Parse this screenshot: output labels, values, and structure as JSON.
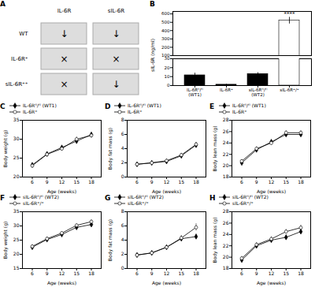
{
  "chart_data": [
    {
      "type": "schematic",
      "title": "A",
      "columns": [
        "IL-6R",
        "sIL-6R"
      ],
      "rows": [
        "WT",
        "IL-6R⁺",
        "sIL-6R⁺⁺"
      ],
      "cells": [
        [
          "↓",
          "↓"
        ],
        [
          "×",
          "×"
        ],
        [
          "×",
          "↓"
        ]
      ]
    },
    {
      "type": "bar",
      "title": "B",
      "ylabel": "sIL-6R (ng/ml)",
      "categories": [
        "IL-6Rᶠˡ/ᶠˡ\n(WT1)",
        "IL-6R⁺",
        "sIL-6Rᶠˡ/ᶠˡ\n(WT2)",
        "sIL-6R⁺/⁺"
      ],
      "values": [
        11.5,
        1.0,
        13.0,
        520.0
      ],
      "errors": [
        2.5,
        0.5,
        1.5,
        40.0
      ],
      "colors": [
        "black",
        "black",
        "black",
        "white"
      ],
      "axis_segments": [
        {
          "ylim": [
            0,
            30
          ],
          "yticks": [
            0,
            10,
            20,
            30
          ]
        },
        {
          "ylim": [
            100,
            630
          ],
          "yticks": [
            100,
            200,
            300,
            400,
            500,
            600
          ]
        }
      ],
      "annotations": [
        {
          "text": "****",
          "category": "sIL-6R⁺/⁺",
          "y": 572
        }
      ]
    },
    {
      "type": "line",
      "title": "C",
      "xlabel": "Age (weeks)",
      "ylabel": "Body weight (g)",
      "xlim": [
        4,
        20
      ],
      "xticks": [
        6,
        9,
        12,
        15,
        18
      ],
      "ylim": [
        20,
        35
      ],
      "yticks": [
        20,
        25,
        30,
        35
      ],
      "legend": "top",
      "series": [
        {
          "name": "IL-6Rᶠˡ/ᶠˡ (WT1)",
          "color": "black",
          "marker": "diamond",
          "x": [
            6,
            9,
            12,
            15,
            18
          ],
          "values": [
            23.2,
            26.1,
            27.8,
            29.5,
            31.2
          ],
          "errors": [
            0.4,
            0.5,
            0.5,
            0.6,
            0.6
          ]
        },
        {
          "name": "IL-6R⁺",
          "color": "black",
          "marker": "open_circle",
          "x": [
            6,
            9,
            12,
            15,
            18
          ],
          "values": [
            23.0,
            26.0,
            27.5,
            30.0,
            31.0
          ],
          "errors": [
            0.4,
            0.5,
            0.6,
            0.6,
            0.7
          ]
        }
      ]
    },
    {
      "type": "line",
      "title": "D",
      "xlabel": "Age (weeks)",
      "ylabel": "Body fat mass (g)",
      "xlim": [
        4,
        20
      ],
      "xticks": [
        6,
        9,
        12,
        15,
        18
      ],
      "ylim": [
        0,
        8
      ],
      "yticks": [
        0,
        2,
        4,
        6,
        8
      ],
      "legend": "top",
      "series": [
        {
          "name": "IL-6Rᶠˡ/ᶠˡ (WT1)",
          "color": "black",
          "marker": "diamond",
          "x": [
            6,
            9,
            12,
            15,
            18
          ],
          "values": [
            1.8,
            2.0,
            2.2,
            3.0,
            4.5
          ],
          "errors": [
            0.15,
            0.15,
            0.2,
            0.25,
            0.3
          ]
        },
        {
          "name": "IL-6R⁺",
          "color": "black",
          "marker": "open_circle",
          "x": [
            6,
            9,
            12,
            15,
            18
          ],
          "values": [
            1.8,
            2.0,
            2.3,
            3.1,
            4.6
          ],
          "errors": [
            0.15,
            0.15,
            0.2,
            0.25,
            0.3
          ]
        }
      ]
    },
    {
      "type": "line",
      "title": "E",
      "xlabel": "Age (weeks)",
      "ylabel": "Body lean mass (g)",
      "xlim": [
        4,
        20
      ],
      "xticks": [
        6,
        9,
        12,
        15,
        18
      ],
      "ylim": [
        18,
        28
      ],
      "yticks": [
        18,
        20,
        22,
        24,
        26,
        28
      ],
      "legend": "top",
      "series": [
        {
          "name": "IL-6Rᶠˡ/ᶠˡ (WT1)",
          "color": "black",
          "marker": "diamond",
          "x": [
            6,
            9,
            12,
            15,
            18
          ],
          "values": [
            20.5,
            22.8,
            24.2,
            25.5,
            25.5
          ],
          "errors": [
            0.3,
            0.3,
            0.35,
            0.35,
            0.4
          ]
        },
        {
          "name": "IL-6R⁺",
          "color": "black",
          "marker": "open_circle",
          "x": [
            6,
            9,
            12,
            15,
            18
          ],
          "values": [
            20.8,
            23.0,
            24.0,
            25.8,
            25.8
          ],
          "errors": [
            0.3,
            0.35,
            0.35,
            0.4,
            0.4
          ]
        }
      ]
    },
    {
      "type": "line",
      "title": "F",
      "xlabel": "Age (weeks)",
      "ylabel": "Body weight (g)",
      "xlim": [
        4,
        20
      ],
      "xticks": [
        6,
        9,
        12,
        15,
        18
      ],
      "ylim": [
        15,
        35
      ],
      "yticks": [
        15,
        20,
        25,
        30,
        35
      ],
      "legend": "top",
      "series": [
        {
          "name": "sIL-6Rᶠˡ/ᶠˡ (WT2)",
          "color": "black",
          "marker": "diamond",
          "x": [
            6,
            9,
            12,
            15,
            18
          ],
          "values": [
            22.5,
            25.2,
            27.0,
            29.5,
            30.5
          ],
          "errors": [
            0.4,
            0.5,
            0.5,
            0.6,
            0.6
          ]
        },
        {
          "name": "sIL-6R⁺/⁺",
          "color": "black",
          "marker": "open_circle",
          "x": [
            6,
            9,
            12,
            15,
            18
          ],
          "values": [
            22.8,
            25.5,
            27.5,
            30.2,
            31.5
          ],
          "errors": [
            0.4,
            0.5,
            0.5,
            0.6,
            0.7
          ]
        }
      ]
    },
    {
      "type": "line",
      "title": "G",
      "xlabel": "Age (weeks)",
      "ylabel": "Body fat mass (g)",
      "xlim": [
        4,
        20
      ],
      "xticks": [
        6,
        9,
        12,
        15,
        18
      ],
      "ylim": [
        0,
        8
      ],
      "yticks": [
        0,
        2,
        4,
        6,
        8
      ],
      "legend": "top",
      "series": [
        {
          "name": "sIL-6Rᶠˡ/ᶠˡ (WT2)",
          "color": "black",
          "marker": "diamond",
          "x": [
            6,
            9,
            12,
            15,
            18
          ],
          "values": [
            1.9,
            2.2,
            3.0,
            4.2,
            4.5
          ],
          "errors": [
            0.15,
            0.2,
            0.25,
            0.3,
            0.35
          ]
        },
        {
          "name": "sIL-6R⁺/⁺",
          "color": "black",
          "marker": "open_circle",
          "x": [
            6,
            9,
            12,
            15,
            18
          ],
          "values": [
            1.9,
            2.2,
            3.0,
            4.3,
            5.8
          ],
          "errors": [
            0.15,
            0.2,
            0.25,
            0.35,
            0.5
          ]
        }
      ]
    },
    {
      "type": "line",
      "title": "H",
      "xlabel": "Age (weeks)",
      "ylabel": "Body lean mass (g)",
      "xlim": [
        4,
        20
      ],
      "xticks": [
        6,
        9,
        12,
        15,
        18
      ],
      "ylim": [
        18,
        28
      ],
      "yticks": [
        18,
        20,
        22,
        24,
        26,
        28
      ],
      "legend": "top",
      "series": [
        {
          "name": "sIL-6Rᶠˡ/ᶠˡ (WT2)",
          "color": "black",
          "marker": "diamond",
          "x": [
            6,
            9,
            12,
            15,
            18
          ],
          "values": [
            19.5,
            22.0,
            23.0,
            23.5,
            24.5
          ],
          "errors": [
            0.35,
            0.35,
            0.4,
            0.4,
            0.4
          ]
        },
        {
          "name": "sIL-6R⁺/⁺",
          "color": "black",
          "marker": "open_circle",
          "x": [
            6,
            9,
            12,
            15,
            18
          ],
          "values": [
            19.8,
            22.2,
            23.2,
            24.5,
            25.2
          ],
          "errors": [
            0.35,
            0.4,
            0.4,
            0.4,
            0.45
          ]
        }
      ]
    }
  ]
}
